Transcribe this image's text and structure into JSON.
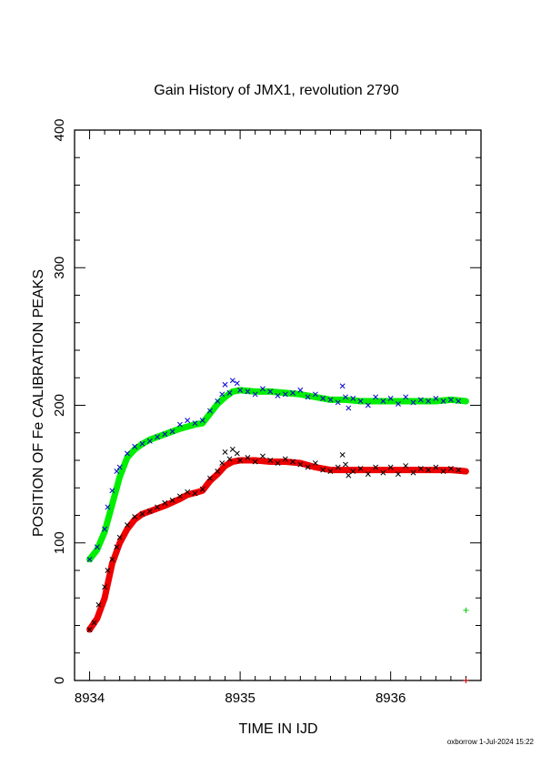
{
  "chart_data": {
    "type": "scatter",
    "title": "Gain History of JMX1, revolution 2790",
    "xlabel": "TIME IN IJD",
    "ylabel": "POSITION OF Fe CALIBRATION PEAKS",
    "xlim": [
      8933.9,
      8936.6
    ],
    "ylim": [
      0,
      400
    ],
    "x_ticks": [
      8934,
      8935,
      8936
    ],
    "y_ticks": [
      0,
      100,
      200,
      300,
      400
    ],
    "grid": false,
    "colors": {
      "upper_fit": "#00ee00",
      "upper_raw": "#0000cc",
      "lower_fit": "#ee0000",
      "lower_raw": "#000000"
    },
    "series": [
      {
        "marker": "x",
        "color": "#0000cc",
        "points": [
          [
            8934.0,
            88
          ],
          [
            8934.05,
            97
          ],
          [
            8934.1,
            110
          ],
          [
            8934.12,
            126
          ],
          [
            8934.15,
            138
          ],
          [
            8934.18,
            152
          ],
          [
            8934.2,
            155
          ],
          [
            8934.25,
            165
          ],
          [
            8934.3,
            170
          ],
          [
            8934.35,
            172
          ],
          [
            8934.4,
            174
          ],
          [
            8934.45,
            177
          ],
          [
            8934.5,
            179
          ],
          [
            8934.55,
            181
          ],
          [
            8934.6,
            186
          ],
          [
            8934.65,
            189
          ],
          [
            8934.7,
            187
          ],
          [
            8934.75,
            189
          ],
          [
            8934.8,
            196
          ],
          [
            8934.85,
            203
          ],
          [
            8934.88,
            208
          ],
          [
            8934.9,
            215
          ],
          [
            8934.93,
            209
          ],
          [
            8934.95,
            218
          ],
          [
            8934.98,
            216
          ],
          [
            8935.0,
            211
          ],
          [
            8935.05,
            210
          ],
          [
            8935.1,
            208
          ],
          [
            8935.15,
            212
          ],
          [
            8935.2,
            210
          ],
          [
            8935.25,
            207
          ],
          [
            8935.3,
            208
          ],
          [
            8935.35,
            209
          ],
          [
            8935.4,
            211
          ],
          [
            8935.45,
            206
          ],
          [
            8935.5,
            208
          ],
          [
            8935.55,
            205
          ],
          [
            8935.6,
            204
          ],
          [
            8935.65,
            202
          ],
          [
            8935.68,
            214
          ],
          [
            8935.7,
            206
          ],
          [
            8935.72,
            198
          ],
          [
            8935.75,
            205
          ],
          [
            8935.8,
            203
          ],
          [
            8935.85,
            200
          ],
          [
            8935.9,
            206
          ],
          [
            8935.95,
            203
          ],
          [
            8936.0,
            205
          ],
          [
            8936.05,
            201
          ],
          [
            8936.1,
            206
          ],
          [
            8936.15,
            202
          ],
          [
            8936.2,
            204
          ],
          [
            8936.25,
            203
          ],
          [
            8936.3,
            205
          ],
          [
            8936.35,
            203
          ],
          [
            8936.4,
            204
          ],
          [
            8936.45,
            203
          ]
        ]
      },
      {
        "marker": "line",
        "color": "#00ee00",
        "points": [
          [
            8934.0,
            88
          ],
          [
            8934.05,
            95
          ],
          [
            8934.1,
            108
          ],
          [
            8934.15,
            128
          ],
          [
            8934.2,
            148
          ],
          [
            8934.25,
            162
          ],
          [
            8934.3,
            168
          ],
          [
            8934.35,
            172
          ],
          [
            8934.4,
            175
          ],
          [
            8934.5,
            179
          ],
          [
            8934.6,
            183
          ],
          [
            8934.7,
            186
          ],
          [
            8934.75,
            187
          ],
          [
            8934.8,
            194
          ],
          [
            8934.85,
            201
          ],
          [
            8934.9,
            206
          ],
          [
            8934.95,
            210
          ],
          [
            8935.0,
            211
          ],
          [
            8935.1,
            210
          ],
          [
            8935.2,
            210
          ],
          [
            8935.3,
            209
          ],
          [
            8935.4,
            208
          ],
          [
            8935.5,
            206
          ],
          [
            8935.6,
            204
          ],
          [
            8935.7,
            204
          ],
          [
            8935.8,
            203
          ],
          [
            8935.9,
            203
          ],
          [
            8936.0,
            203
          ],
          [
            8936.1,
            203
          ],
          [
            8936.2,
            203
          ],
          [
            8936.3,
            203
          ],
          [
            8936.4,
            204
          ],
          [
            8936.5,
            203
          ]
        ]
      },
      {
        "marker": "x",
        "color": "#000000",
        "points": [
          [
            8934.0,
            37
          ],
          [
            8934.03,
            42
          ],
          [
            8934.06,
            55
          ],
          [
            8934.1,
            68
          ],
          [
            8934.12,
            80
          ],
          [
            8934.15,
            88
          ],
          [
            8934.18,
            97
          ],
          [
            8934.2,
            104
          ],
          [
            8934.25,
            113
          ],
          [
            8934.3,
            119
          ],
          [
            8934.35,
            121
          ],
          [
            8934.4,
            123
          ],
          [
            8934.45,
            126
          ],
          [
            8934.5,
            129
          ],
          [
            8934.55,
            131
          ],
          [
            8934.6,
            134
          ],
          [
            8934.65,
            137
          ],
          [
            8934.7,
            136
          ],
          [
            8934.75,
            139
          ],
          [
            8934.8,
            147
          ],
          [
            8934.85,
            152
          ],
          [
            8934.88,
            158
          ],
          [
            8934.9,
            166
          ],
          [
            8934.93,
            161
          ],
          [
            8934.95,
            168
          ],
          [
            8934.98,
            165
          ],
          [
            8935.0,
            160
          ],
          [
            8935.05,
            162
          ],
          [
            8935.1,
            159
          ],
          [
            8935.15,
            163
          ],
          [
            8935.2,
            160
          ],
          [
            8935.25,
            158
          ],
          [
            8935.3,
            161
          ],
          [
            8935.35,
            159
          ],
          [
            8935.4,
            157
          ],
          [
            8935.45,
            155
          ],
          [
            8935.5,
            158
          ],
          [
            8935.55,
            153
          ],
          [
            8935.6,
            152
          ],
          [
            8935.65,
            155
          ],
          [
            8935.68,
            164
          ],
          [
            8935.7,
            157
          ],
          [
            8935.72,
            149
          ],
          [
            8935.75,
            152
          ],
          [
            8935.8,
            154
          ],
          [
            8935.85,
            150
          ],
          [
            8935.9,
            155
          ],
          [
            8935.95,
            151
          ],
          [
            8936.0,
            155
          ],
          [
            8936.05,
            150
          ],
          [
            8936.1,
            156
          ],
          [
            8936.15,
            151
          ],
          [
            8936.2,
            154
          ],
          [
            8936.25,
            153
          ],
          [
            8936.3,
            155
          ],
          [
            8936.35,
            152
          ],
          [
            8936.4,
            154
          ],
          [
            8936.45,
            153
          ]
        ]
      },
      {
        "marker": "line",
        "color": "#ee0000",
        "points": [
          [
            8934.0,
            37
          ],
          [
            8934.05,
            45
          ],
          [
            8934.1,
            60
          ],
          [
            8934.15,
            85
          ],
          [
            8934.2,
            100
          ],
          [
            8934.25,
            110
          ],
          [
            8934.3,
            117
          ],
          [
            8934.35,
            121
          ],
          [
            8934.4,
            123
          ],
          [
            8934.5,
            127
          ],
          [
            8934.6,
            132
          ],
          [
            8934.65,
            135
          ],
          [
            8934.72,
            137
          ],
          [
            8934.75,
            138
          ],
          [
            8934.8,
            145
          ],
          [
            8934.85,
            150
          ],
          [
            8934.9,
            156
          ],
          [
            8934.95,
            159
          ],
          [
            8935.0,
            160
          ],
          [
            8935.1,
            160
          ],
          [
            8935.2,
            159
          ],
          [
            8935.3,
            159
          ],
          [
            8935.4,
            158
          ],
          [
            8935.5,
            155
          ],
          [
            8935.6,
            153
          ],
          [
            8935.7,
            153
          ],
          [
            8935.8,
            153
          ],
          [
            8935.9,
            153
          ],
          [
            8936.0,
            153
          ],
          [
            8936.1,
            153
          ],
          [
            8936.2,
            153
          ],
          [
            8936.3,
            153
          ],
          [
            8936.4,
            153
          ],
          [
            8936.5,
            152
          ]
        ]
      },
      {
        "marker": "+",
        "color": "#00cc00",
        "points": [
          [
            8936.5,
            51
          ]
        ]
      },
      {
        "marker": "+",
        "color": "#cc0000",
        "points": [
          [
            8936.5,
            0
          ]
        ]
      }
    ]
  },
  "footer": {
    "stamp": "oxborrow  1-Jul-2024 15:22"
  }
}
